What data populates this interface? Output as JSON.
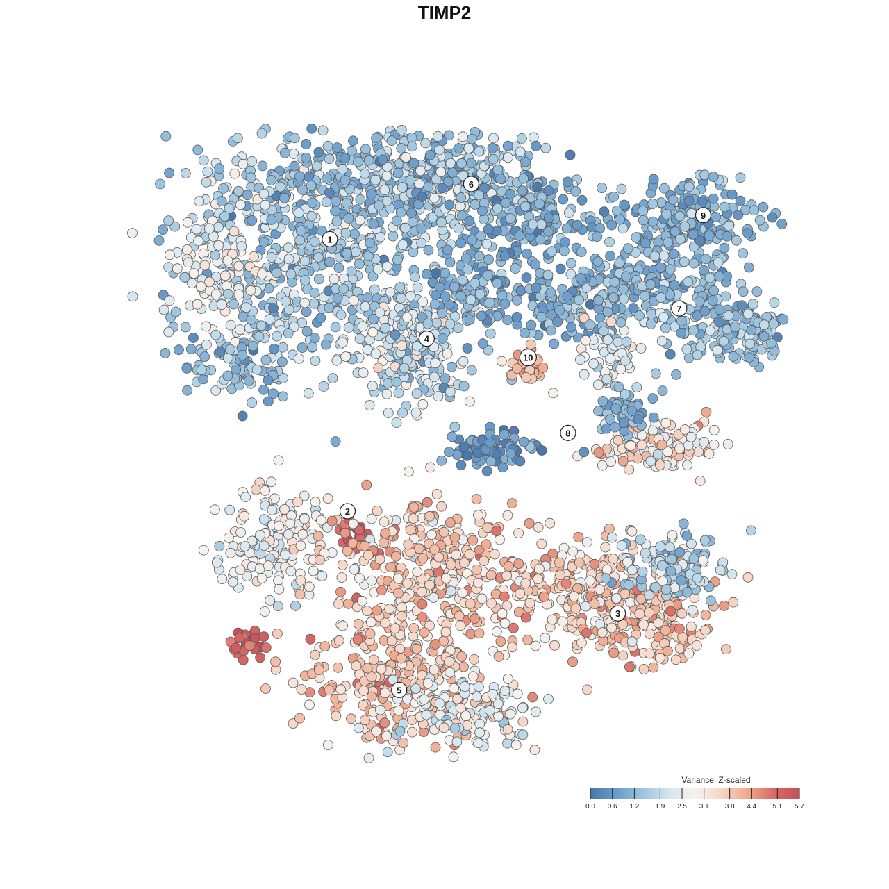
{
  "chart_data": {
    "type": "scatter",
    "title": "TIMP2",
    "xlabel": "",
    "ylabel": "",
    "grid": false,
    "legend": {
      "title": "Variance, Z-scaled",
      "placement": "bottom-right",
      "ticks": [
        "0.0",
        "0.6",
        "1.2",
        "1.9",
        "2.5",
        "3.1",
        "3.8",
        "4.4",
        "5.1",
        "5.7"
      ],
      "range": [
        0.0,
        5.7
      ],
      "colors": [
        "#4a76a8",
        "#6a9ccb",
        "#9cc4de",
        "#d4e6f0",
        "#f6f2ee",
        "#f7d6c6",
        "#efab8e",
        "#d86b67",
        "#c44f5a"
      ]
    },
    "clusters": [
      {
        "id": "1",
        "x": 0.371,
        "y": 0.269,
        "mean_value": 1.6
      },
      {
        "id": "2",
        "x": 0.391,
        "y": 0.575,
        "mean_value": 3.0
      },
      {
        "id": "3",
        "x": 0.695,
        "y": 0.69,
        "mean_value": 3.6
      },
      {
        "id": "4",
        "x": 0.48,
        "y": 0.381,
        "mean_value": 2.0
      },
      {
        "id": "5",
        "x": 0.449,
        "y": 0.776,
        "mean_value": 3.7
      },
      {
        "id": "6",
        "x": 0.53,
        "y": 0.207,
        "mean_value": 1.5
      },
      {
        "id": "7",
        "x": 0.764,
        "y": 0.347,
        "mean_value": 1.4
      },
      {
        "id": "8",
        "x": 0.639,
        "y": 0.487,
        "mean_value": 1.3
      },
      {
        "id": "9",
        "x": 0.791,
        "y": 0.242,
        "mean_value": 1.1
      },
      {
        "id": "10",
        "x": 0.594,
        "y": 0.402,
        "mean_value": 4.1
      }
    ]
  }
}
